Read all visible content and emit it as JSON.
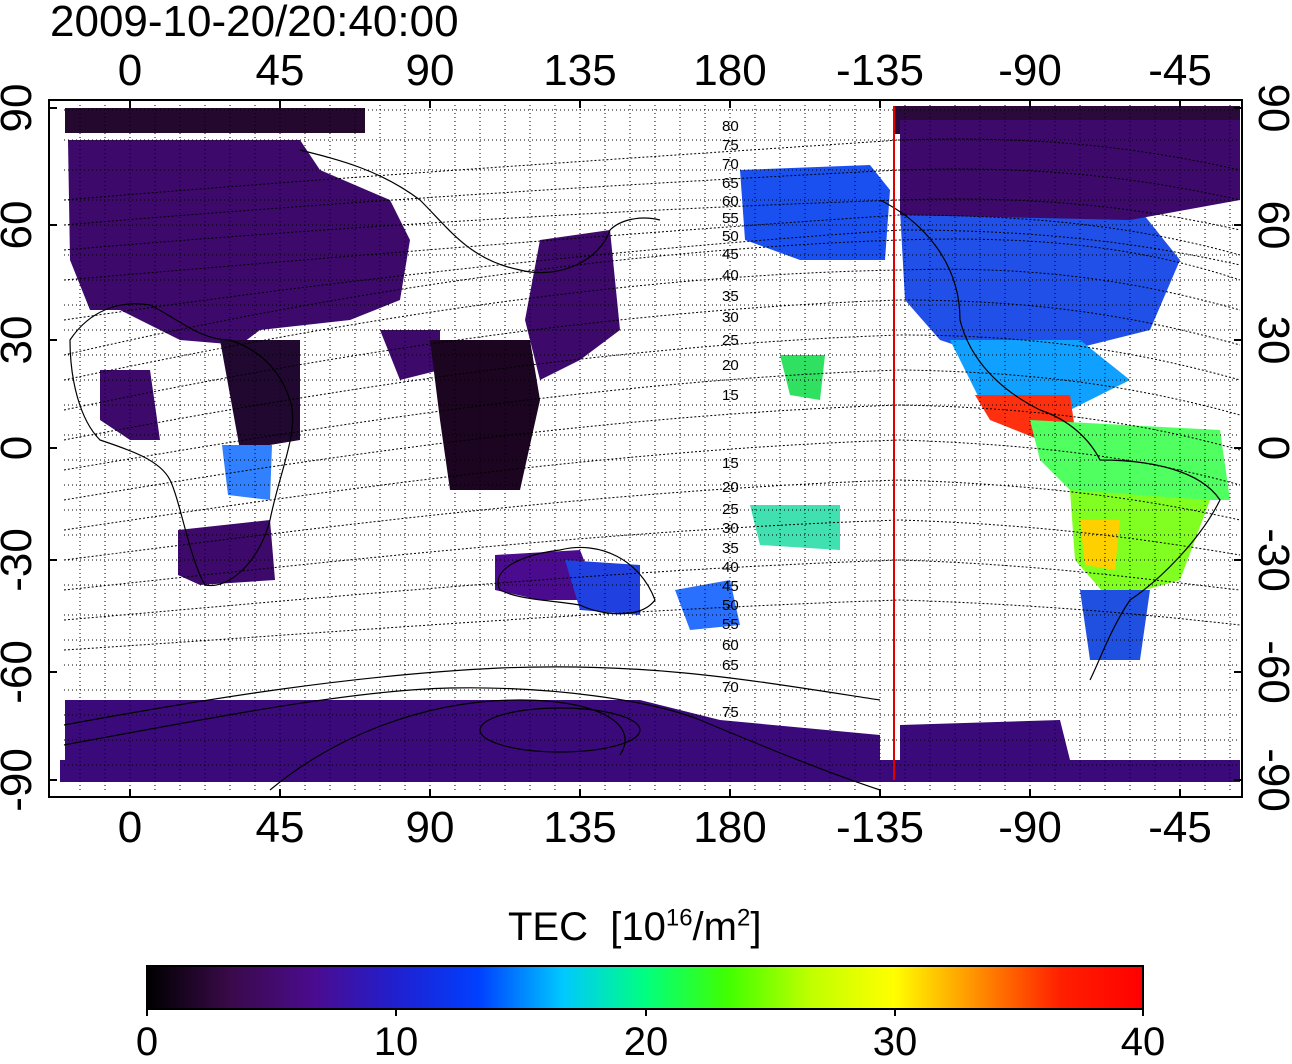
{
  "title": "2009-10-20/20:40:00",
  "map": {
    "top_lon_labels": [
      "0",
      "45",
      "90",
      "135",
      "180",
      "-135",
      "-90",
      "-45"
    ],
    "bottom_lon_labels": [
      "0",
      "45",
      "90",
      "135",
      "180",
      "-135",
      "-90",
      "-45"
    ],
    "left_lat_labels": [
      "90",
      "60",
      "30",
      "0",
      "-30",
      "-60",
      "-90"
    ],
    "right_lat_labels": [
      "90",
      "60",
      "30",
      "0",
      "-30",
      "-60",
      "-90"
    ],
    "magnetic_latitude_labels_north": [
      "80",
      "75",
      "70",
      "65",
      "60",
      "55",
      "50",
      "45",
      "40",
      "35",
      "30",
      "25",
      "20",
      "15"
    ],
    "magnetic_latitude_labels_south": [
      "15",
      "20",
      "25",
      "30",
      "35",
      "40",
      "45",
      "50",
      "55",
      "60",
      "65",
      "70",
      "75"
    ],
    "terminator_line_color": "#e00000"
  },
  "colorbar": {
    "title": "TEC",
    "unit_prefix": "[10",
    "unit_exp": "16",
    "unit_mid": "/m",
    "unit_exp2": "2",
    "unit_suffix": "]",
    "tick_labels": [
      "0",
      "10",
      "20",
      "30",
      "40"
    ],
    "colors": [
      "#000000",
      "#3a0a4a",
      "#4b0b8f",
      "#2020d0",
      "#0040ff",
      "#00c8ff",
      "#00ff80",
      "#40ff00",
      "#c0ff00",
      "#ffff00",
      "#ff9000",
      "#ff2000",
      "#ff0000"
    ]
  }
}
